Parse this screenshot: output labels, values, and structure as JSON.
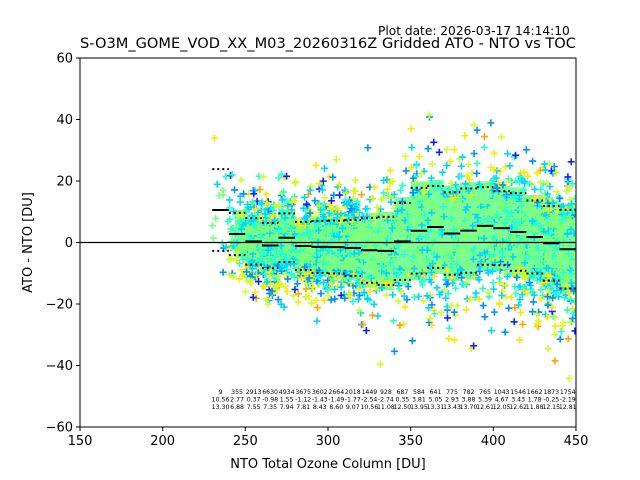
{
  "plot_date": "Plot date: 2026-03-17 14:14:10",
  "chart_data": {
    "type": "scatter",
    "title": "S-O3M_GOME_VOD_XX_M03_20260316Z Gridded ATO - NTO vs TOC",
    "xlabel": "NTO Total Ozone Column [DU]",
    "ylabel": "ATO - NTO [DU]",
    "xlim": [
      150,
      450
    ],
    "ylim": [
      -60,
      60
    ],
    "xticks": [
      "150",
      "200",
      "250",
      "300",
      "350",
      "400",
      "450"
    ],
    "yticks": [
      "−60",
      "−40",
      "−20",
      "0",
      "20",
      "40",
      "60"
    ],
    "xtick_values": [
      150,
      200,
      250,
      300,
      350,
      400,
      450
    ],
    "ytick_values": [
      -60,
      -40,
      -20,
      0,
      20,
      40,
      60
    ],
    "zero_line": 0,
    "colormap": [
      "#0a24ff",
      "#0090ff",
      "#00d4ff",
      "#29ffce",
      "#7dff7a",
      "#ceff29",
      "#ffe600",
      "#ffa400"
    ],
    "bins": {
      "width": 10,
      "starts": [
        230,
        240,
        250,
        260,
        270,
        280,
        290,
        300,
        310,
        320,
        330,
        340,
        350,
        360,
        370,
        380,
        390,
        400,
        410,
        420,
        430,
        440
      ],
      "counts": [
        9,
        355,
        2913,
        6630,
        4934,
        3675,
        3602,
        2664,
        2018,
        1449,
        928,
        687,
        584,
        641,
        775,
        782,
        765,
        1043,
        1546,
        1662,
        1873,
        1754
      ],
      "mean": [
        10.56,
        2.77,
        0.37,
        -0.98,
        1.55,
        -1.12,
        -1.43,
        -1.49,
        -1.77,
        -2.54,
        -2.74,
        0.35,
        3.81,
        5.05,
        2.93,
        3.88,
        5.39,
        4.67,
        3.43,
        1.78,
        -0.25,
        -2.19
      ],
      "std": [
        13.3,
        6.88,
        7.55,
        7.35,
        7.94,
        7.81,
        8.43,
        8.6,
        9.07,
        10.56,
        11.08,
        12.5,
        13.95,
        13.31,
        13.43,
        13.7,
        12.61,
        12.05,
        12.62,
        11.88,
        12.15,
        12.81
      ],
      "counts_text": [
        "9",
        "355",
        "2913",
        "6630",
        "4934",
        "3675",
        "3602",
        "2664",
        "2018",
        "1449",
        "928",
        "687",
        "584",
        "641",
        "775",
        "782",
        "765",
        "1043",
        "1546",
        "1662",
        "1873",
        "1754"
      ],
      "mean_text": [
        "10.56",
        "2.77",
        "0.37",
        "-0.98",
        "1.55",
        "-1.12",
        "-1.43",
        "-1.49",
        "-1.77",
        "-2.54",
        "-2.74",
        "0.35",
        "3.81",
        "5.05",
        "2.93",
        "3.88",
        "5.39",
        "4.67",
        "3.43",
        "1.78",
        "-0.25",
        "-2.19"
      ],
      "std_text": [
        "13.30",
        "6.88",
        "7.55",
        "7.35",
        "7.94",
        "7.81",
        "8.43",
        "8.60",
        "9.07",
        "10.56",
        "11.08",
        "12.50",
        "13.95",
        "13.31",
        "13.43",
        "13.70",
        "12.61",
        "12.05",
        "12.62",
        "11.88",
        "12.15",
        "12.81"
      ]
    }
  }
}
